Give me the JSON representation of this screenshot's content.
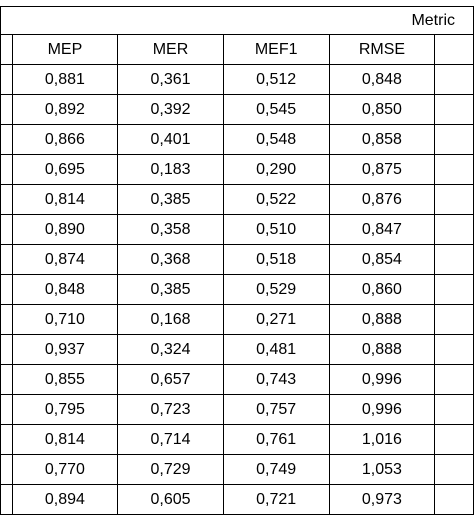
{
  "table": {
    "group_header": "Metric",
    "columns": [
      "MEP",
      "MER",
      "MEF1",
      "RMSE"
    ],
    "rows": [
      [
        "0,881",
        "0,361",
        "0,512",
        "0,848"
      ],
      [
        "0,892",
        "0,392",
        "0,545",
        "0,850"
      ],
      [
        "0,866",
        "0,401",
        "0,548",
        "0,858"
      ],
      [
        "0,695",
        "0,183",
        "0,290",
        "0,875"
      ],
      [
        "0,814",
        "0,385",
        "0,522",
        "0,876"
      ],
      [
        "0,890",
        "0,358",
        "0,510",
        "0,847"
      ],
      [
        "0,874",
        "0,368",
        "0,518",
        "0,854"
      ],
      [
        "0,848",
        "0,385",
        "0,529",
        "0,860"
      ],
      [
        "0,710",
        "0,168",
        "0,271",
        "0,888"
      ],
      [
        "0,937",
        "0,324",
        "0,481",
        "0,888"
      ],
      [
        "0,855",
        "0,657",
        "0,743",
        "0,996"
      ],
      [
        "0,795",
        "0,723",
        "0,757",
        "0,996"
      ],
      [
        "0,814",
        "0,714",
        "0,761",
        "1,016"
      ],
      [
        "0,770",
        "0,729",
        "0,749",
        "1,053"
      ],
      [
        "0,894",
        "0,605",
        "0,721",
        "0,973"
      ]
    ]
  }
}
